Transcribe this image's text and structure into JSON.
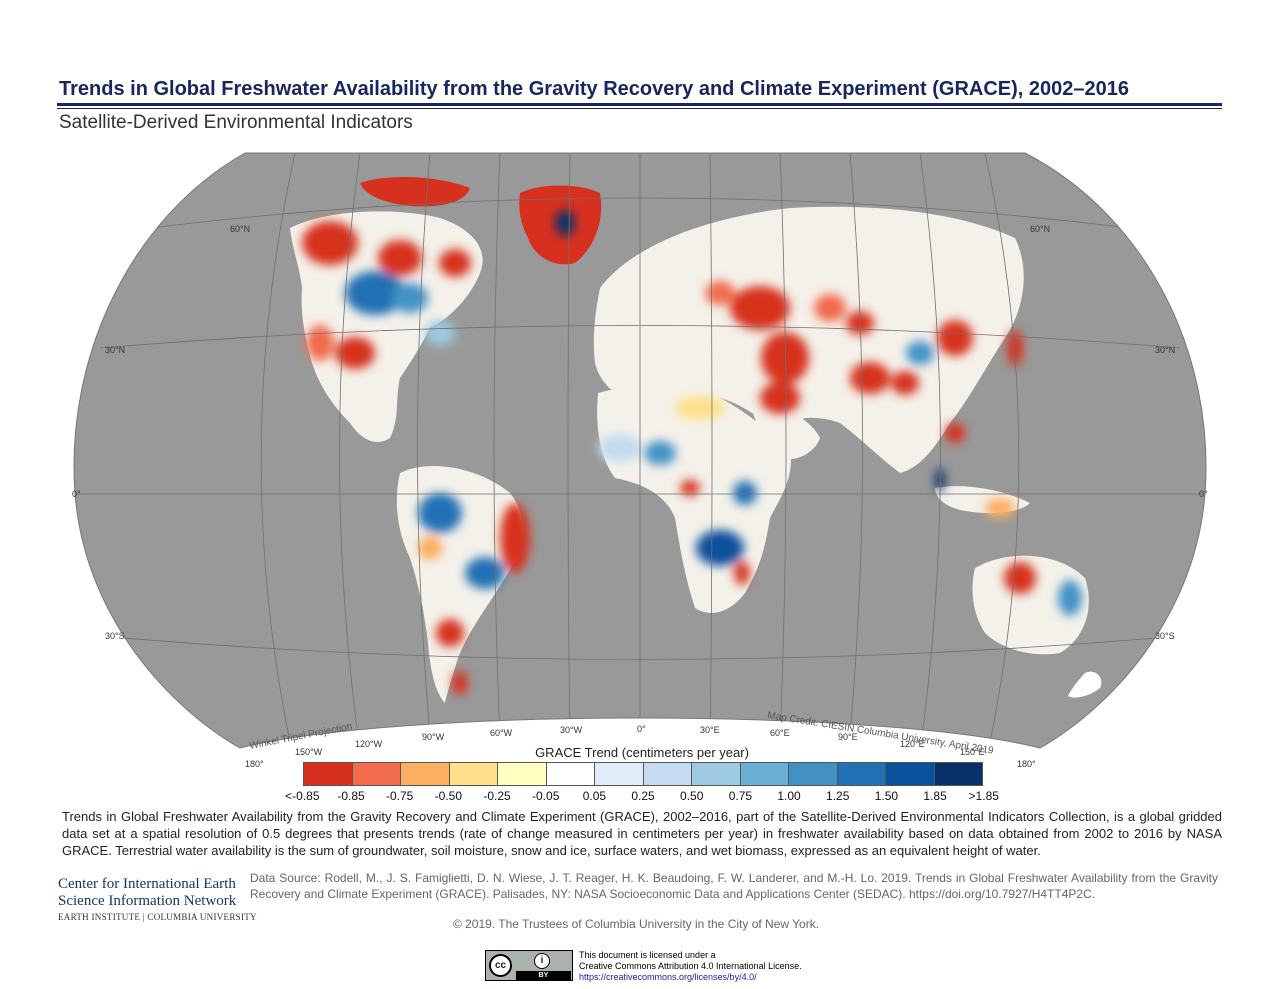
{
  "header": {
    "title": "Trends in Global Freshwater Availability from the Gravity Recovery and Climate Experiment (GRACE), 2002–2016",
    "subtitle": "Satellite-Derived Environmental Indicators"
  },
  "map": {
    "projection_label": "Winkel Tripel Projection",
    "credit": "Map Credit: CIESIN Columbia University, April 2019",
    "ocean_color": "#999999",
    "land_color": "#f4f1ea",
    "lat_labels": [
      "60°N",
      "30°N",
      "0°",
      "30°S"
    ],
    "lon_labels": [
      "180°",
      "150°W",
      "120°W",
      "90°W",
      "60°W",
      "30°W",
      "0°",
      "30°E",
      "60°E",
      "90°E",
      "120°E",
      "150°E",
      "180°"
    ]
  },
  "legend": {
    "title": "GRACE Trend (centimeters per year)",
    "colors": [
      "#d7301f",
      "#f26b4b",
      "#fdae61",
      "#fee08b",
      "#ffffbf",
      "#ffffff",
      "#e0ecf7",
      "#c6dbef",
      "#9ecae1",
      "#6baed6",
      "#4292c6",
      "#2171b5",
      "#08519c",
      "#08306b"
    ],
    "labels": [
      "<-0.85",
      "-0.85",
      "-0.75",
      "-0.50",
      "-0.25",
      "-0.05",
      "0.05",
      "0.25",
      "0.50",
      "0.75",
      "1.00",
      "1.25",
      "1.50",
      "1.85",
      ">1.85"
    ]
  },
  "description": "Trends in Global Freshwater Availability from the Gravity Recovery and Climate Experiment (GRACE), 2002–2016, part of the Satellite-Derived Environmental Indicators Collection, is a global gridded data set at a spatial resolution of 0.5 degrees that presents trends (rate of change measured in centimeters per year) in freshwater availability based on data obtained from 2002 to 2016 by NASA GRACE. Terrestrial water availability is the sum of groundwater, soil moisture, snow and ice, surface waters, and wet biomass, expressed as an equivalent height of water.",
  "logo": {
    "line1": "Center for International Earth",
    "line2": "Science Information Network",
    "line3": "EARTH INSTITUTE | COLUMBIA UNIVERSITY"
  },
  "source": "Data Source: Rodell, M., J. S. Famiglietti, D. N. Wiese, J. T. Reager, H. K. Beaudoing, F. W. Landerer, and M.-H. Lo. 2019. Trends in Global Freshwater Availability from the Gravity Recovery and Climate Experiment (GRACE). Palisades, NY: NASA Socioeconomic Data and Applications Center (SEDAC). https://doi.org/10.7927/H4TT4P2C.",
  "copyright": "© 2019. The Trustees of Columbia University in the City of New York.",
  "license": {
    "badge_cc": "cc",
    "badge_by": "BY",
    "line1": "This document is licensed under a",
    "line2": "Creative Commons Attribution 4.0 International License.",
    "link": "https://creativecommons.org/licenses/by/4.0/"
  }
}
